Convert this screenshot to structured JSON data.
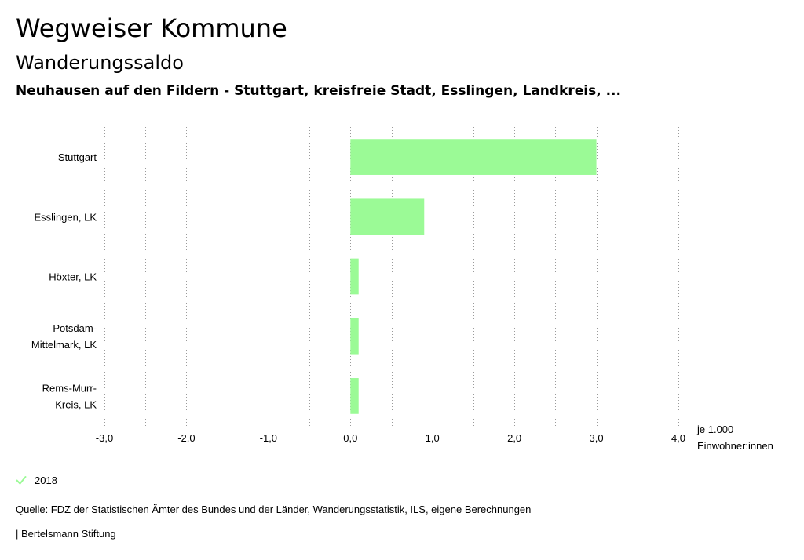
{
  "header": {
    "title": "Wegweiser Kommune",
    "subtitle": "Wanderungssaldo",
    "region": "Neuhausen auf den Fildern - Stuttgart, kreisfreie Stadt, Esslingen, Landkreis, ..."
  },
  "chart_data": {
    "type": "bar",
    "orientation": "horizontal",
    "categories": [
      [
        "Stuttgart"
      ],
      [
        "Esslingen, LK"
      ],
      [
        "Höxter, LK"
      ],
      [
        "Potsdam-",
        "Mittelmark, LK"
      ],
      [
        "Rems-Murr-",
        "Kreis, LK"
      ]
    ],
    "series": [
      {
        "name": "2018",
        "values": [
          3.0,
          0.9,
          0.1,
          0.1,
          0.1
        ],
        "color": "#9bfa96"
      }
    ],
    "xlim": [
      -3,
      4
    ],
    "ticks": [
      -3,
      -2,
      -1,
      0,
      1,
      2,
      3,
      4
    ],
    "tick_labels": [
      "-3,0",
      "-2,0",
      "-1,0",
      "0,0",
      "1,0",
      "2,0",
      "3,0",
      "4,0"
    ],
    "unit_label": [
      "je 1.000",
      "Einwohner:innen"
    ],
    "grid": true
  },
  "legend": {
    "label": "2018",
    "color": "#9bfa96"
  },
  "footer": {
    "source": "Quelle: FDZ der Statistischen Ämter des Bundes und der Länder, Wanderungsstatistik, ILS, eigene Berechnungen",
    "credit": "| Bertelsmann Stiftung"
  }
}
